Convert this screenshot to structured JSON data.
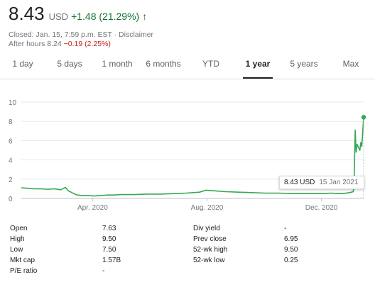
{
  "quote": {
    "price": "8.43",
    "currency": "USD",
    "change": "+1.48 (21.29%)",
    "arrow": "🡑",
    "closed_text": "Closed: Jan. 15, 7:59 p.m. EST · Disclaimer",
    "after_hours_label": "After hours 8.24",
    "after_hours_change": "−0.19 (2.25%)"
  },
  "tabs": [
    {
      "label": "1 day"
    },
    {
      "label": "5 days"
    },
    {
      "label": "1 month"
    },
    {
      "label": "6 months"
    },
    {
      "label": "YTD"
    },
    {
      "label": "1 year",
      "active": true
    },
    {
      "label": "5 years"
    },
    {
      "label": "Max"
    }
  ],
  "tooltip": {
    "price": "8.43 USD",
    "date": "15 Jan 2021"
  },
  "colors": {
    "line": "#34a853",
    "up": "#137333",
    "down": "#c5221f",
    "grid": "#e8eaed"
  },
  "chart_data": {
    "type": "line",
    "ylim": [
      0,
      10
    ],
    "yticks": [
      0,
      2,
      4,
      6,
      8,
      10
    ],
    "xlabels": [
      "Apr. 2020",
      "Aug. 2020",
      "Dec. 2020"
    ],
    "grid": true,
    "series": [
      {
        "x": [
          "2020-01-16",
          "2020-01-23",
          "2020-01-30",
          "2020-02-06",
          "2020-02-13",
          "2020-02-20",
          "2020-02-27",
          "2020-03-03",
          "2020-03-06",
          "2020-03-10",
          "2020-03-13",
          "2020-03-16",
          "2020-03-20",
          "2020-03-27",
          "2020-04-03",
          "2020-04-10",
          "2020-04-17",
          "2020-04-24",
          "2020-05-01",
          "2020-05-15",
          "2020-05-29",
          "2020-06-12",
          "2020-06-26",
          "2020-07-10",
          "2020-07-24",
          "2020-07-31",
          "2020-08-07",
          "2020-08-14",
          "2020-08-21",
          "2020-09-04",
          "2020-09-18",
          "2020-10-02",
          "2020-10-16",
          "2020-10-30",
          "2020-11-13",
          "2020-11-27",
          "2020-12-04",
          "2020-12-11",
          "2020-12-18",
          "2020-12-24",
          "2020-12-31",
          "2021-01-04",
          "2021-01-05",
          "2021-01-06",
          "2021-01-07",
          "2021-01-08",
          "2021-01-11",
          "2021-01-12",
          "2021-01-13",
          "2021-01-14",
          "2021-01-15"
        ],
        "values": [
          1.1,
          1.05,
          1.0,
          1.0,
          0.95,
          1.0,
          0.9,
          1.15,
          0.8,
          0.6,
          0.45,
          0.35,
          0.3,
          0.3,
          0.25,
          0.3,
          0.35,
          0.35,
          0.4,
          0.4,
          0.45,
          0.45,
          0.5,
          0.55,
          0.65,
          0.85,
          0.8,
          0.75,
          0.7,
          0.65,
          0.6,
          0.55,
          0.55,
          0.5,
          0.5,
          0.5,
          0.5,
          0.55,
          0.5,
          0.5,
          0.6,
          0.7,
          2.5,
          7.1,
          4.8,
          5.6,
          5.0,
          5.8,
          5.4,
          6.9,
          8.43
        ]
      }
    ]
  },
  "stats": [
    {
      "label": "Open",
      "value": "7.63"
    },
    {
      "label": "High",
      "value": "9.50"
    },
    {
      "label": "Low",
      "value": "7.50"
    },
    {
      "label": "Mkt cap",
      "value": "1.57B"
    },
    {
      "label": "P/E ratio",
      "value": "-"
    },
    {
      "label": "Div yield",
      "value": "-"
    },
    {
      "label": "Prev close",
      "value": "6.95"
    },
    {
      "label": "52-wk high",
      "value": "9.50"
    },
    {
      "label": "52-wk low",
      "value": "0.25"
    }
  ]
}
